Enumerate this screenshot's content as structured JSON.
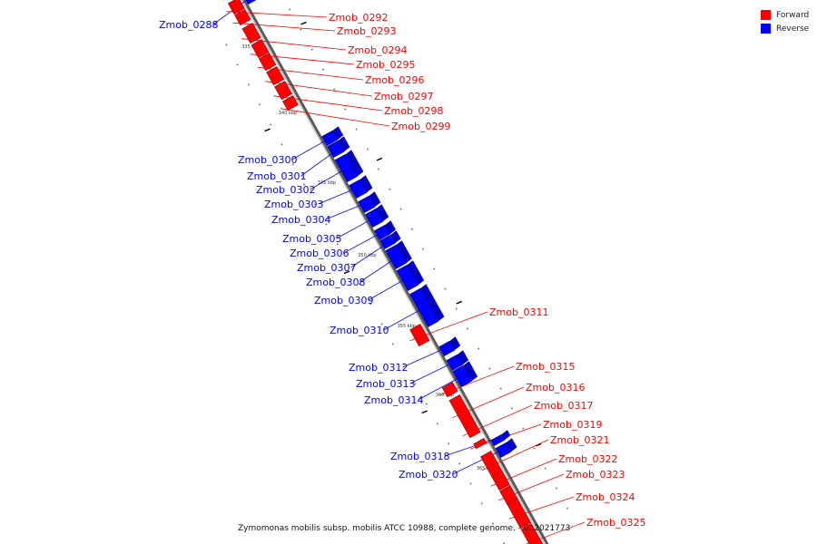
{
  "legend": [
    {
      "label": "Forward",
      "color": "#ff0000"
    },
    {
      "label": "Reverse",
      "color": "#0000ff"
    }
  ],
  "caption": "Zymomonas mobilis subsp. mobilis ATCC 10988, complete genome. - 0..2021773",
  "colors": {
    "forward": "#ff0000",
    "reverse": "#0000ff",
    "backbone": "#8a8a8a"
  },
  "scale_labels": [
    "335 kbp",
    "340 kbp",
    "345 kbp",
    "350 kbp",
    "355 kbp",
    "360 kbp",
    "365 kbp"
  ],
  "genes": [
    {
      "name": "Zmob_0288",
      "strand": "reverse"
    },
    {
      "name": "Zmob_0292",
      "strand": "forward"
    },
    {
      "name": "Zmob_0293",
      "strand": "forward"
    },
    {
      "name": "Zmob_0294",
      "strand": "forward"
    },
    {
      "name": "Zmob_0295",
      "strand": "forward"
    },
    {
      "name": "Zmob_0296",
      "strand": "forward"
    },
    {
      "name": "Zmob_0297",
      "strand": "forward"
    },
    {
      "name": "Zmob_0298",
      "strand": "forward"
    },
    {
      "name": "Zmob_0299",
      "strand": "forward"
    },
    {
      "name": "Zmob_0300",
      "strand": "reverse"
    },
    {
      "name": "Zmob_0301",
      "strand": "reverse"
    },
    {
      "name": "Zmob_0302",
      "strand": "reverse"
    },
    {
      "name": "Zmob_0303",
      "strand": "reverse"
    },
    {
      "name": "Zmob_0304",
      "strand": "reverse"
    },
    {
      "name": "Zmob_0305",
      "strand": "reverse"
    },
    {
      "name": "Zmob_0306",
      "strand": "reverse"
    },
    {
      "name": "Zmob_0307",
      "strand": "reverse"
    },
    {
      "name": "Zmob_0308",
      "strand": "reverse"
    },
    {
      "name": "Zmob_0309",
      "strand": "reverse"
    },
    {
      "name": "Zmob_0310",
      "strand": "reverse"
    },
    {
      "name": "Zmob_0311",
      "strand": "forward"
    },
    {
      "name": "Zmob_0312",
      "strand": "reverse"
    },
    {
      "name": "Zmob_0313",
      "strand": "reverse"
    },
    {
      "name": "Zmob_0314",
      "strand": "reverse"
    },
    {
      "name": "Zmob_0315",
      "strand": "forward"
    },
    {
      "name": "Zmob_0316",
      "strand": "forward"
    },
    {
      "name": "Zmob_0317",
      "strand": "forward"
    },
    {
      "name": "Zmob_0319",
      "strand": "forward"
    },
    {
      "name": "Zmob_0321",
      "strand": "forward"
    },
    {
      "name": "Zmob_0318",
      "strand": "reverse"
    },
    {
      "name": "Zmob_0320",
      "strand": "reverse"
    },
    {
      "name": "Zmob_0322",
      "strand": "forward"
    },
    {
      "name": "Zmob_0323",
      "strand": "forward"
    },
    {
      "name": "Zmob_0324",
      "strand": "forward"
    },
    {
      "name": "Zmob_0325",
      "strand": "forward"
    }
  ]
}
